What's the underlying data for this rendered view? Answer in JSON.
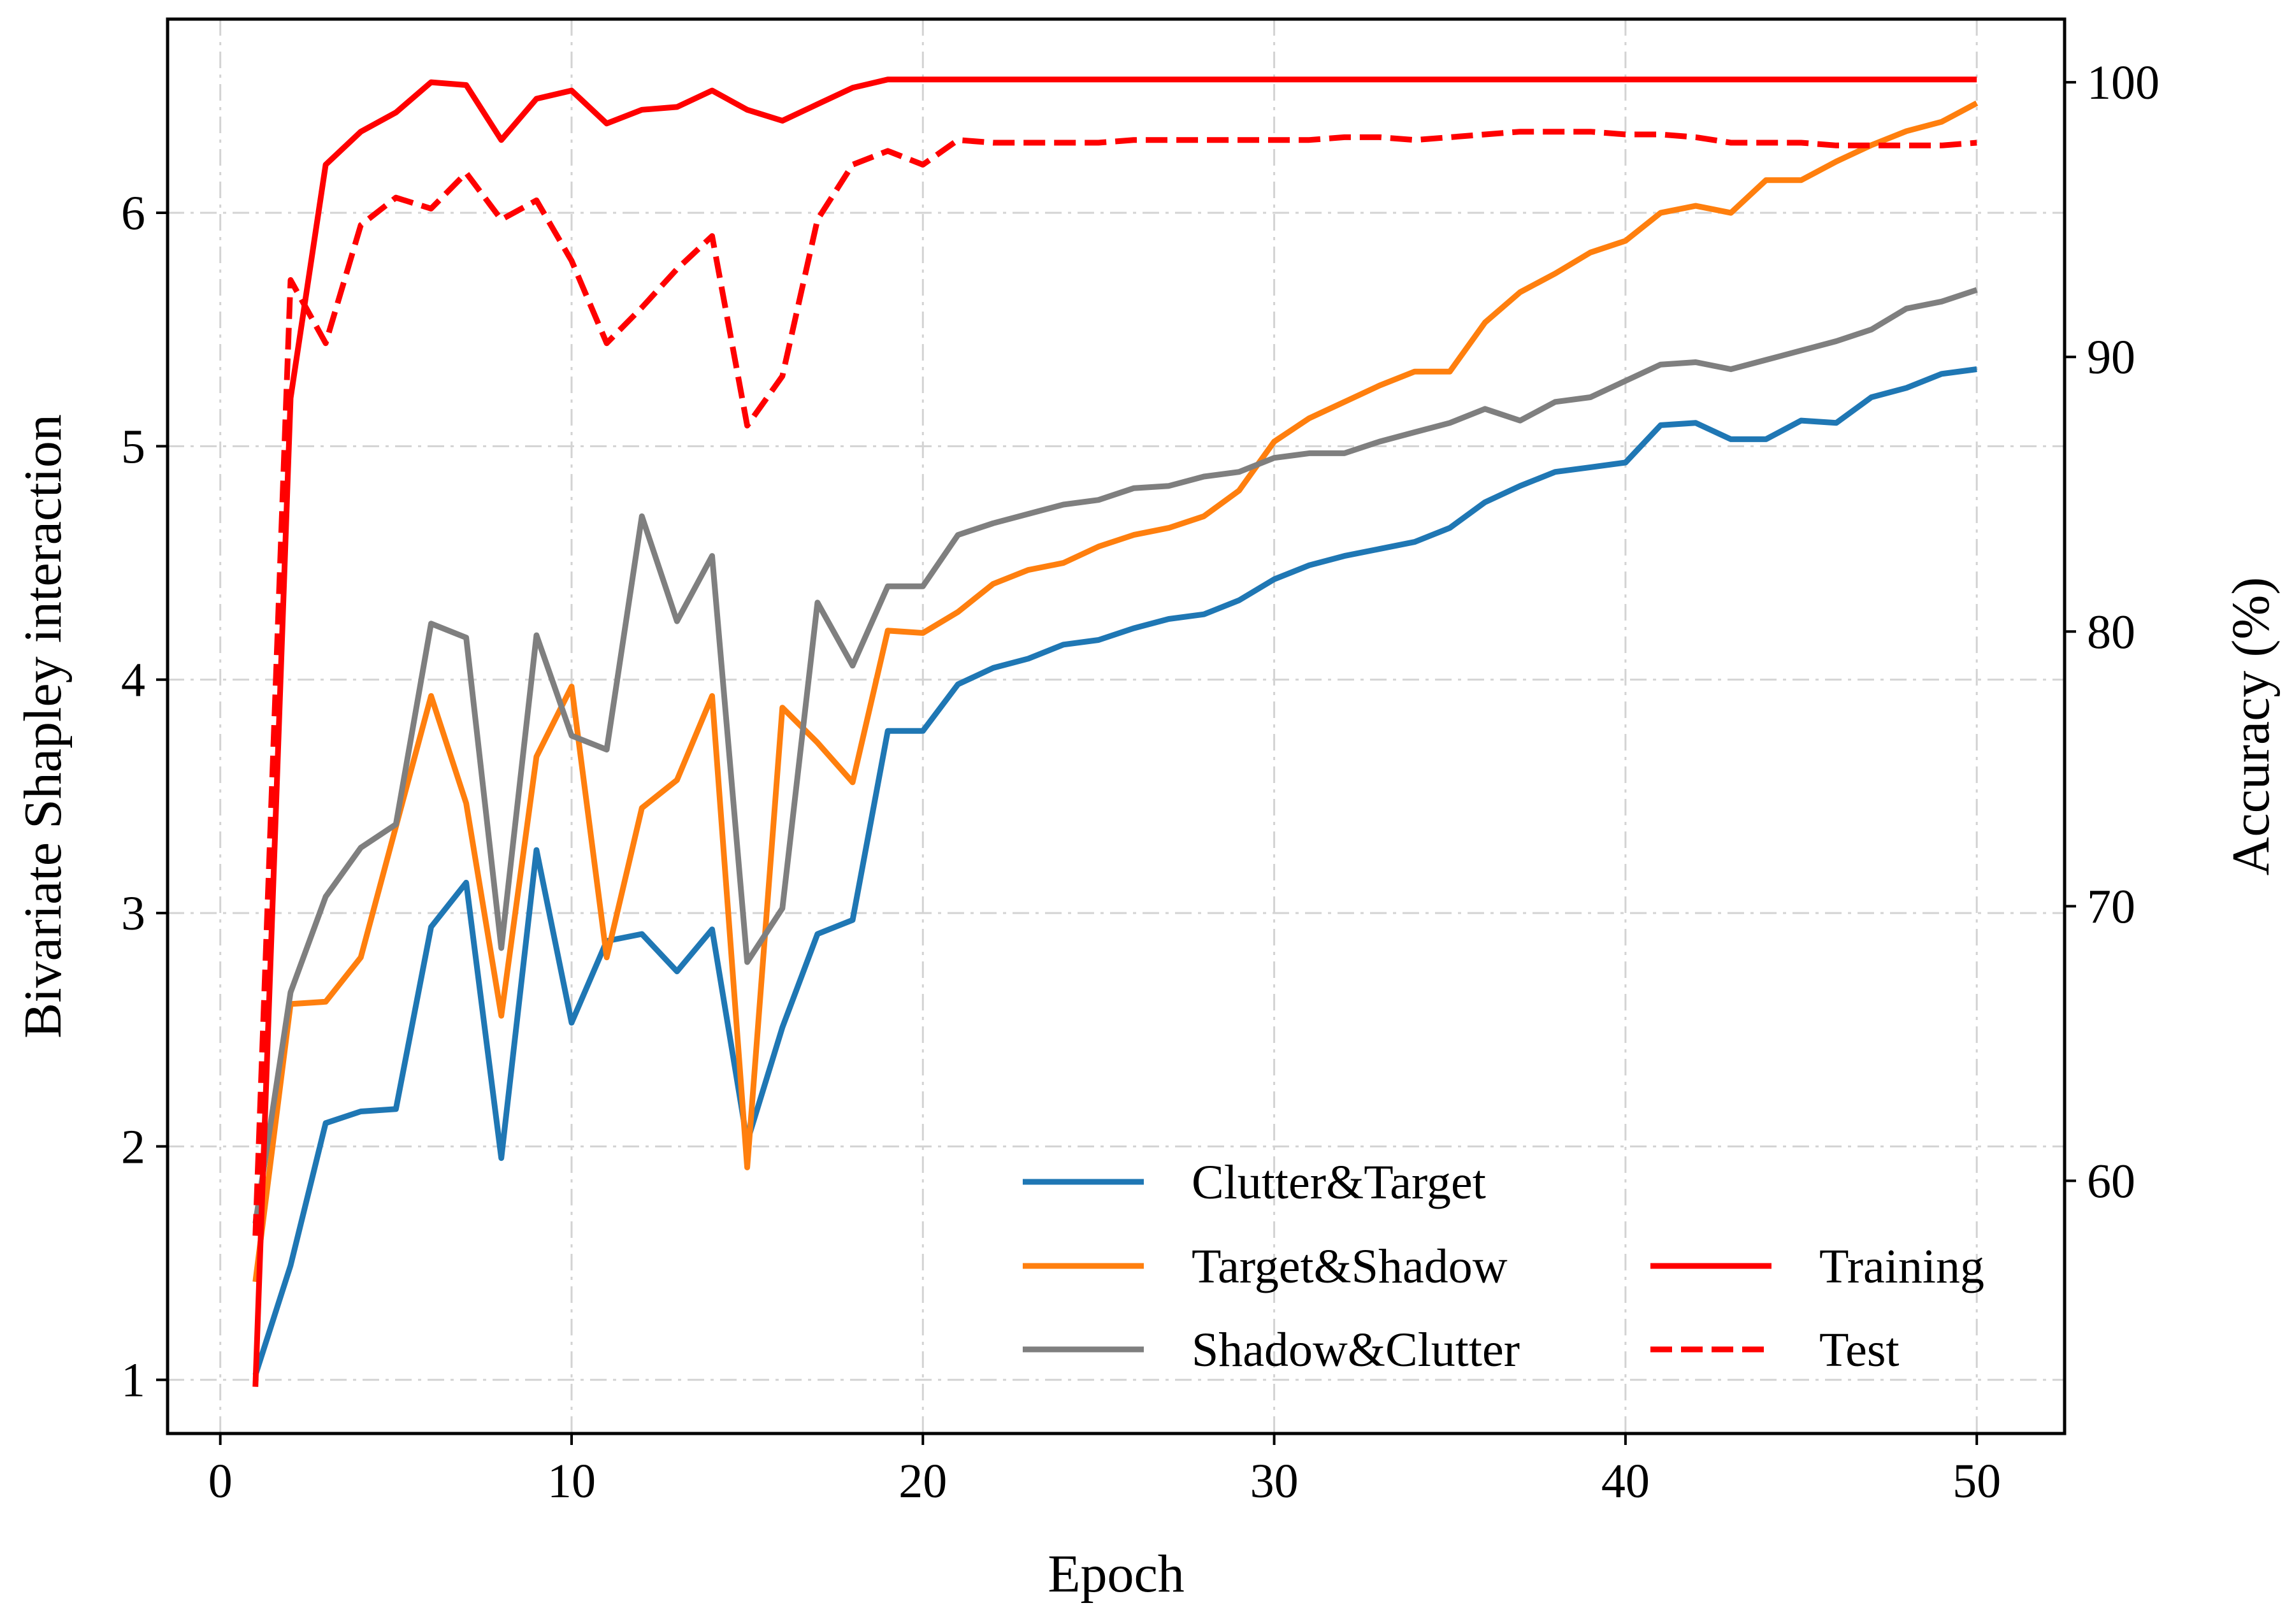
{
  "chart_data": {
    "type": "line",
    "xlabel": "Epoch",
    "ylabel_left": "Bivariate Shapley interaction",
    "ylabel_right": "Accuracy (%)",
    "xlim": [
      -1.5,
      52.5
    ],
    "ylim_left": [
      0.77,
      6.83
    ],
    "ylim_right": [
      50.8,
      102.3
    ],
    "xticks": [
      0,
      10,
      20,
      30,
      40,
      50
    ],
    "yticks_left": [
      1,
      2,
      3,
      4,
      5,
      6
    ],
    "yticks_right": [
      60,
      70,
      80,
      90,
      100
    ],
    "grid": true,
    "x": [
      1,
      2,
      3,
      4,
      5,
      6,
      7,
      8,
      9,
      10,
      11,
      12,
      13,
      14,
      15,
      16,
      17,
      18,
      19,
      20,
      21,
      22,
      23,
      24,
      25,
      26,
      27,
      28,
      29,
      30,
      31,
      32,
      33,
      34,
      35,
      36,
      37,
      38,
      39,
      40,
      41,
      42,
      43,
      44,
      45,
      46,
      47,
      48,
      49,
      50
    ],
    "series": [
      {
        "name": "Clutter&Target",
        "axis": "left",
        "color": "#1f77b4",
        "dash": "solid",
        "values": [
          1.02,
          1.49,
          2.1,
          2.15,
          2.16,
          2.94,
          3.13,
          1.95,
          3.27,
          2.53,
          2.88,
          2.91,
          2.75,
          2.93,
          2.02,
          2.51,
          2.91,
          2.97,
          3.78,
          3.78,
          3.98,
          4.05,
          4.09,
          4.15,
          4.17,
          4.22,
          4.26,
          4.28,
          4.34,
          4.43,
          4.49,
          4.53,
          4.56,
          4.59,
          4.65,
          4.76,
          4.83,
          4.89,
          4.91,
          4.93,
          5.09,
          5.1,
          5.03,
          5.03,
          5.11,
          5.1,
          5.21,
          5.25,
          5.31,
          5.33
        ]
      },
      {
        "name": "Target&Shadow",
        "axis": "left",
        "color": "#ff7f0e",
        "dash": "solid",
        "values": [
          1.42,
          2.61,
          2.62,
          2.81,
          3.37,
          3.93,
          3.47,
          2.56,
          3.67,
          3.97,
          2.81,
          3.45,
          3.57,
          3.93,
          1.91,
          3.88,
          3.73,
          3.56,
          4.21,
          4.2,
          4.29,
          4.41,
          4.47,
          4.5,
          4.57,
          4.62,
          4.65,
          4.7,
          4.81,
          5.02,
          5.12,
          5.19,
          5.26,
          5.32,
          5.32,
          5.53,
          5.66,
          5.74,
          5.83,
          5.88,
          6.0,
          6.03,
          6.0,
          6.14,
          6.14,
          6.22,
          6.29,
          6.35,
          6.39,
          6.47
        ]
      },
      {
        "name": "Shadow&Clutter",
        "axis": "left",
        "color": "#7f7f7f",
        "dash": "solid",
        "values": [
          1.67,
          2.66,
          3.07,
          3.28,
          3.38,
          4.24,
          4.18,
          2.85,
          4.19,
          3.76,
          3.7,
          4.7,
          4.25,
          4.53,
          2.79,
          3.02,
          4.33,
          4.06,
          4.4,
          4.4,
          4.62,
          4.67,
          4.71,
          4.75,
          4.77,
          4.82,
          4.83,
          4.87,
          4.89,
          4.95,
          4.97,
          4.97,
          5.02,
          5.06,
          5.1,
          5.16,
          5.11,
          5.19,
          5.21,
          5.28,
          5.35,
          5.36,
          5.33,
          5.37,
          5.41,
          5.45,
          5.5,
          5.59,
          5.62,
          5.67
        ]
      },
      {
        "name": "Training",
        "axis": "right",
        "color": "#ff0000",
        "dash": "solid",
        "values": [
          52.5,
          88.5,
          97.0,
          98.2,
          98.9,
          100.0,
          99.9,
          97.9,
          99.4,
          99.7,
          98.5,
          99.0,
          99.1,
          99.7,
          99.0,
          98.6,
          99.2,
          99.8,
          100.1,
          100.1,
          100.1,
          100.1,
          100.1,
          100.1,
          100.1,
          100.1,
          100.1,
          100.1,
          100.1,
          100.1,
          100.1,
          100.1,
          100.1,
          100.1,
          100.1,
          100.1,
          100.1,
          100.1,
          100.1,
          100.1,
          100.1,
          100.1,
          100.1,
          100.1,
          100.1,
          100.1,
          100.1,
          100.1,
          100.1,
          100.1
        ]
      },
      {
        "name": "Test",
        "axis": "right",
        "color": "#ff0000",
        "dash": "dashed",
        "values": [
          58.0,
          92.8,
          90.5,
          94.8,
          95.8,
          95.4,
          96.7,
          95.0,
          95.7,
          93.5,
          90.5,
          91.8,
          93.2,
          94.4,
          87.5,
          89.3,
          95.0,
          97.0,
          97.5,
          97.0,
          97.9,
          97.8,
          97.8,
          97.8,
          97.8,
          97.9,
          97.9,
          97.9,
          97.9,
          97.9,
          97.9,
          98.0,
          98.0,
          97.9,
          98.0,
          98.1,
          98.2,
          98.2,
          98.2,
          98.1,
          98.1,
          98.0,
          97.8,
          97.8,
          97.8,
          97.7,
          97.7,
          97.7,
          97.7,
          97.8
        ]
      }
    ],
    "legend": {
      "placement": "lower-right",
      "columns": [
        [
          "Clutter&Target",
          "Target&Shadow",
          "Shadow&Clutter"
        ],
        [
          "Training",
          "Test"
        ]
      ]
    }
  }
}
